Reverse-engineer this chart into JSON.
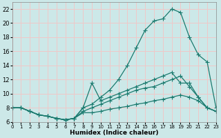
{
  "bg_color": "#cce8e8",
  "grid_color": "#f0c8c8",
  "line_color": "#1a7a6e",
  "xlabel": "Humidex (Indice chaleur)",
  "xlim": [
    0,
    23
  ],
  "ylim": [
    6,
    23
  ],
  "xtick_vals": [
    0,
    1,
    2,
    3,
    4,
    5,
    6,
    7,
    8,
    9,
    10,
    11,
    12,
    13,
    14,
    15,
    16,
    17,
    18,
    19,
    20,
    21,
    22,
    23
  ],
  "ytick_vals": [
    6,
    8,
    10,
    12,
    14,
    16,
    18,
    20,
    22
  ],
  "lines": [
    {
      "x": [
        0,
        1,
        2,
        3,
        4,
        5,
        6,
        7,
        8,
        9,
        10,
        11,
        12,
        13,
        14,
        15,
        16,
        17,
        18,
        19,
        20,
        21,
        22,
        23
      ],
      "y": [
        8.0,
        8.0,
        7.5,
        7.0,
        6.8,
        6.5,
        6.3,
        6.5,
        8.0,
        8.5,
        9.5,
        10.5,
        12.0,
        14.0,
        16.5,
        19.0,
        20.3,
        20.6,
        22.0,
        21.5,
        18.0,
        15.5,
        14.5,
        8.0
      ]
    },
    {
      "x": [
        0,
        1,
        2,
        3,
        4,
        5,
        6,
        7,
        8,
        9,
        10,
        11,
        12,
        13,
        14,
        15,
        16,
        17,
        18,
        19,
        20,
        21,
        22,
        23
      ],
      "y": [
        8.0,
        8.0,
        7.5,
        7.0,
        6.8,
        6.5,
        6.3,
        6.5,
        8.0,
        11.5,
        9.0,
        9.5,
        10.0,
        10.5,
        11.0,
        11.5,
        12.0,
        12.5,
        13.0,
        11.5,
        11.5,
        9.5,
        8.0,
        7.5
      ]
    },
    {
      "x": [
        0,
        1,
        2,
        3,
        4,
        5,
        6,
        7,
        8,
        9,
        10,
        11,
        12,
        13,
        14,
        15,
        16,
        17,
        18,
        19,
        20,
        21,
        22,
        23
      ],
      "y": [
        8.0,
        8.0,
        7.5,
        7.0,
        6.8,
        6.5,
        6.3,
        6.5,
        7.5,
        8.0,
        8.5,
        9.0,
        9.5,
        10.0,
        10.5,
        10.8,
        11.0,
        11.5,
        12.0,
        12.5,
        11.0,
        9.5,
        8.0,
        7.5
      ]
    },
    {
      "x": [
        0,
        1,
        2,
        3,
        4,
        5,
        6,
        7,
        8,
        9,
        10,
        11,
        12,
        13,
        14,
        15,
        16,
        17,
        18,
        19,
        20,
        21,
        22,
        23
      ],
      "y": [
        8.0,
        8.0,
        7.5,
        7.0,
        6.8,
        6.5,
        6.3,
        6.5,
        7.3,
        7.3,
        7.5,
        7.8,
        8.0,
        8.2,
        8.5,
        8.7,
        9.0,
        9.2,
        9.5,
        9.8,
        9.5,
        9.0,
        8.0,
        7.5
      ]
    }
  ]
}
